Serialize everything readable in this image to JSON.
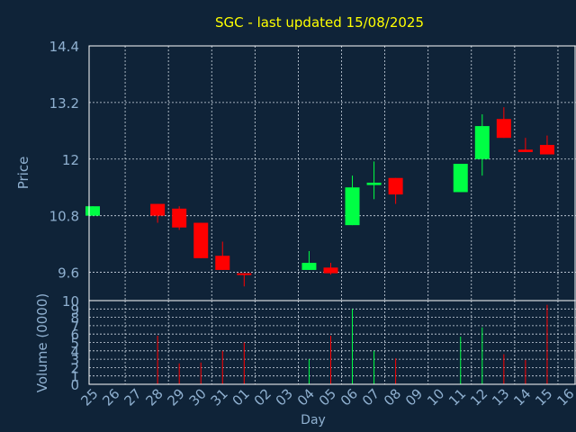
{
  "colors": {
    "background": "#0f2338",
    "plot_border": "#ffffff",
    "grid": "#cfd8e3",
    "title": "#ffff00",
    "axis_text": "#8fb0d0",
    "up": "#00ff44",
    "down": "#ff0000"
  },
  "chart_data": {
    "type": "candlestick",
    "title": "SGC - last updated 15/08/2025",
    "xlabel": "Day",
    "price_axis": {
      "label": "Price",
      "ylim": [
        9.0,
        14.4
      ],
      "ticks": [
        "14.4",
        "13.2",
        "12",
        "10.8",
        "9.6"
      ],
      "tick_values": [
        14.4,
        13.2,
        12.0,
        10.8,
        9.6
      ]
    },
    "volume_axis": {
      "label": "Volume (0000)",
      "ylim": [
        0,
        10
      ],
      "ticks": [
        "10",
        "9",
        "8",
        "7",
        "6",
        "5",
        "4",
        "3",
        "2",
        "1",
        "0"
      ],
      "tick_values": [
        10,
        9,
        8,
        7,
        6,
        5,
        4,
        3,
        2,
        1,
        0
      ]
    },
    "x_ticks": [
      "25",
      "26",
      "27",
      "28",
      "29",
      "30",
      "31",
      "01",
      "02",
      "03",
      "04",
      "05",
      "06",
      "07",
      "08",
      "09",
      "10",
      "11",
      "12",
      "13",
      "14",
      "15",
      "16"
    ],
    "grid": true,
    "candles": [
      {
        "day": "25",
        "open": 10.8,
        "close": 11.0,
        "high": 11.0,
        "low": 10.8,
        "volume": 0
      },
      {
        "day": "28",
        "open": 11.05,
        "close": 10.8,
        "high": 11.05,
        "low": 10.65,
        "volume": 5.8
      },
      {
        "day": "29",
        "open": 10.95,
        "close": 10.55,
        "high": 11.0,
        "low": 10.5,
        "volume": 2.5
      },
      {
        "day": "30",
        "open": 10.65,
        "close": 9.9,
        "high": 10.65,
        "low": 9.9,
        "volume": 2.6
      },
      {
        "day": "31",
        "open": 9.95,
        "close": 9.65,
        "high": 10.25,
        "low": 9.65,
        "volume": 4.0
      },
      {
        "day": "01",
        "open": 9.58,
        "close": 9.55,
        "high": 9.58,
        "low": 9.3,
        "volume": 5.0
      },
      {
        "day": "04",
        "open": 9.65,
        "close": 9.8,
        "high": 10.05,
        "low": 9.65,
        "volume": 3.0
      },
      {
        "day": "05",
        "open": 9.7,
        "close": 9.58,
        "high": 9.8,
        "low": 9.55,
        "volume": 5.8
      },
      {
        "day": "06",
        "open": 10.6,
        "close": 11.4,
        "high": 11.65,
        "low": 10.6,
        "volume": 9.0
      },
      {
        "day": "07",
        "open": 11.45,
        "close": 11.5,
        "high": 11.95,
        "low": 11.15,
        "volume": 4.0
      },
      {
        "day": "08",
        "open": 11.6,
        "close": 11.25,
        "high": 11.6,
        "low": 11.05,
        "volume": 3.1
      },
      {
        "day": "11",
        "open": 11.3,
        "close": 11.9,
        "high": 11.9,
        "low": 11.3,
        "volume": 5.7
      },
      {
        "day": "12",
        "open": 12.0,
        "close": 12.7,
        "high": 12.95,
        "low": 11.65,
        "volume": 6.8
      },
      {
        "day": "13",
        "open": 12.85,
        "close": 12.45,
        "high": 13.1,
        "low": 12.45,
        "volume": 3.6
      },
      {
        "day": "14",
        "open": 12.2,
        "close": 12.15,
        "high": 12.45,
        "low": 12.15,
        "volume": 2.9
      },
      {
        "day": "15",
        "open": 12.3,
        "close": 12.1,
        "high": 12.5,
        "low": 12.1,
        "volume": 9.5
      }
    ]
  }
}
